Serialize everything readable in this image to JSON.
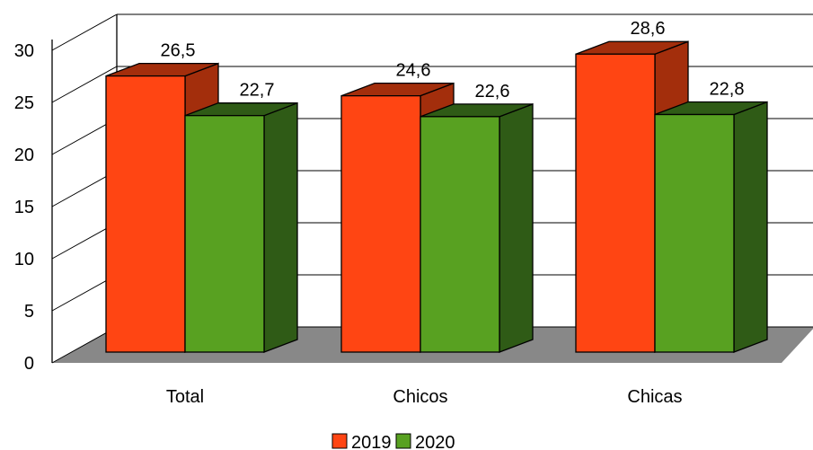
{
  "chart_data": {
    "type": "bar",
    "categories": [
      "Total",
      "Chicos",
      "Chicas"
    ],
    "series": [
      {
        "name": "2019",
        "values": [
          26.5,
          24.6,
          28.6
        ],
        "labels": [
          "26,5",
          "24,6",
          "28,6"
        ],
        "color": "#ff4513",
        "side_color": "#a32e0c"
      },
      {
        "name": "2020",
        "values": [
          22.7,
          22.6,
          22.8
        ],
        "labels": [
          "22,7",
          "22,6",
          "22,8"
        ],
        "color": "#58a121",
        "side_color": "#2f5b16"
      }
    ],
    "y_ticks": [
      "0",
      "5",
      "10",
      "15",
      "20",
      "25",
      "30"
    ],
    "ylim": [
      0,
      30
    ],
    "grid": true,
    "legend_position": "bottom",
    "floor_color": "#888888"
  }
}
